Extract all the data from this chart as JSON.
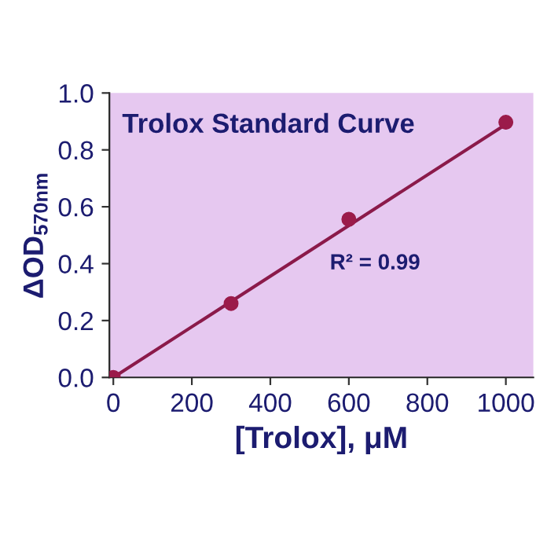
{
  "chart_data": {
    "type": "scatter",
    "title": "Trolox Standard Curve",
    "xlabel": "[Trolox], μM",
    "ylabel": "ΔOD$_{570nm}$",
    "x": [
      0,
      300,
      600,
      1000
    ],
    "series": [
      {
        "color": "#9b1b4a",
        "values": [
          0.0,
          0.26,
          0.556,
          0.897
        ]
      },
      {
        "type": "line",
        "marker": "none",
        "color": "#8b1a4a",
        "x": [
          0,
          1000
        ],
        "values": [
          0.0,
          0.89
        ]
      }
    ],
    "annotations": [
      "R² = 0.99"
    ],
    "xlim": [
      -10,
      1070
    ],
    "ylim": [
      0,
      1.0
    ],
    "xticks": [
      0,
      200,
      400,
      600,
      800,
      1000
    ],
    "yticks": [
      {
        "value": 0,
        "label": "0.0"
      },
      {
        "value": 0.2,
        "label": "0.2"
      },
      {
        "value": 0.4,
        "label": "0.4"
      },
      {
        "value": 0.6,
        "label": "0.6"
      },
      {
        "value": 0.8,
        "label": "0.8"
      },
      {
        "value": 1.0,
        "label": "1.0"
      }
    ],
    "marker": "circle",
    "grid": false,
    "legend": false
  }
}
